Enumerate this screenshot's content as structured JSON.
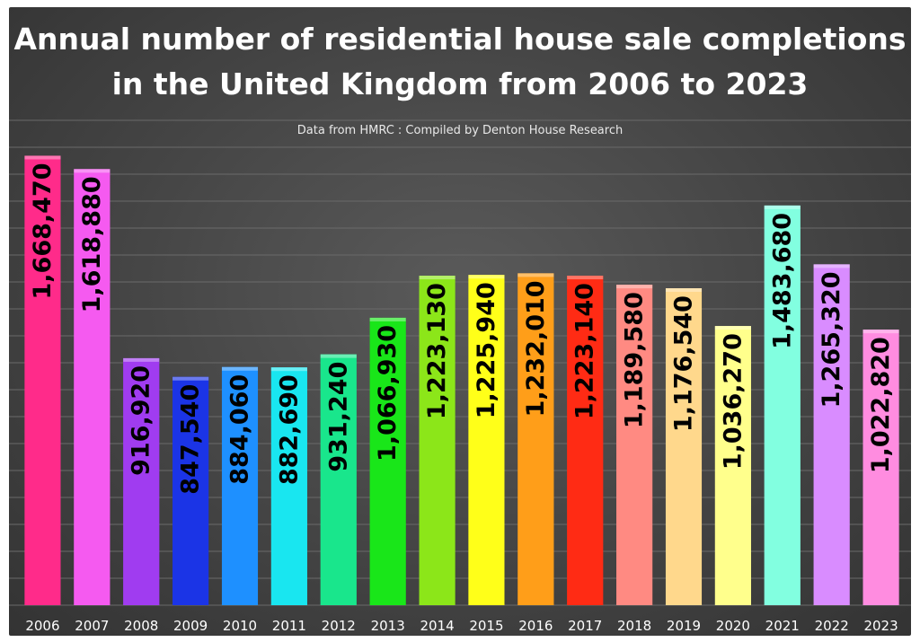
{
  "chart_data": {
    "type": "bar",
    "title_lines": [
      "Annual number of residential house sale completions",
      "in the United Kingdom from 2006 to 2023"
    ],
    "subtitle": "Data from HMRC : Compiled by Denton House Research",
    "xlabel": "",
    "ylabel": "",
    "grid": true,
    "ylim": [
      0,
      1800000
    ],
    "categories": [
      "2006",
      "2007",
      "2008",
      "2009",
      "2010",
      "2011",
      "2012",
      "2013",
      "2014",
      "2015",
      "2016",
      "2017",
      "2018",
      "2019",
      "2020",
      "2021",
      "2022",
      "2023"
    ],
    "values": [
      1668470,
      1618880,
      916920,
      847540,
      884060,
      882690,
      931240,
      1066930,
      1223130,
      1225940,
      1232010,
      1223140,
      1189580,
      1176540,
      1036270,
      1483680,
      1265320,
      1022820
    ],
    "value_labels": [
      "1,668,470",
      "1,618,880",
      "916,920",
      "847,540",
      "884,060",
      "882,690",
      "931,240",
      "1,066,930",
      "1,223,130",
      "1,225,940",
      "1,232,010",
      "1,223,140",
      "1,189,580",
      "1,176,540",
      "1,036,270",
      "1,483,680",
      "1,265,320",
      "1,022,820"
    ],
    "bar_colors": [
      "#ff2b8a",
      "#f55af0",
      "#a03cf0",
      "#1b34e6",
      "#1e90ff",
      "#19e6f0",
      "#19e68c",
      "#19e619",
      "#8ce619",
      "#ffff19",
      "#ff9e19",
      "#ff2b14",
      "#ff8a82",
      "#ffd88c",
      "#ffff8c",
      "#82ffe0",
      "#d98cff",
      "#ff8ce0"
    ]
  }
}
